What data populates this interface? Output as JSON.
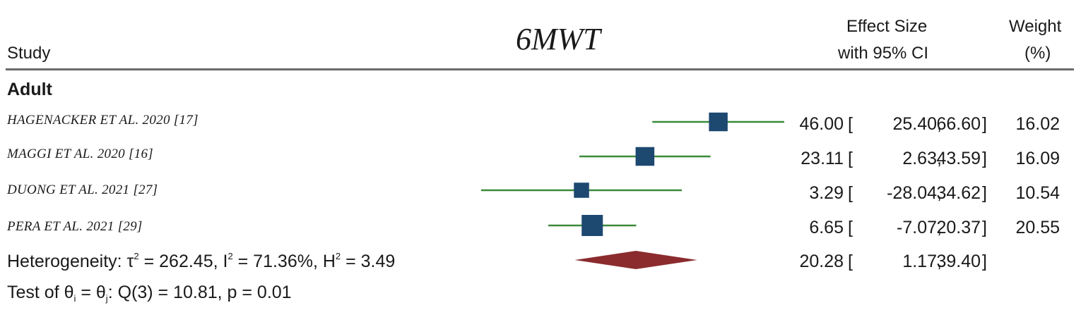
{
  "chart_data": {
    "type": "forest",
    "title": "6MWT",
    "columns": {
      "study": "Study",
      "effect_line1": "Effect Size",
      "effect_line2": "with 95% CI",
      "weight_line1": "Weight",
      "weight_line2": "(%)"
    },
    "subgroup": "Adult",
    "studies": [
      {
        "name": "HAGENACKER ET AL. 2020 [17]",
        "effect": 46.0,
        "lower": 25.4,
        "upper": 66.6,
        "weight": 16.02,
        "effect_text": "46.00",
        "lower_text": "25.40",
        "upper_text": "66.60",
        "weight_text": "16.02"
      },
      {
        "name": "MAGGI ET AL. 2020 [16]",
        "effect": 23.11,
        "lower": 2.63,
        "upper": 43.59,
        "weight": 16.09,
        "effect_text": "23.11",
        "lower_text": "2.63",
        "upper_text": "43.59",
        "weight_text": "16.09"
      },
      {
        "name": "DUONG ET AL. 2021 [27]",
        "effect": 3.29,
        "lower": -28.04,
        "upper": 34.62,
        "weight": 10.54,
        "effect_text": "3.29",
        "lower_text": "-28.04",
        "upper_text": "34.62",
        "weight_text": "10.54"
      },
      {
        "name": "PERA ET AL. 2021 [29]",
        "effect": 6.65,
        "lower": -7.07,
        "upper": 20.37,
        "weight": 20.55,
        "effect_text": "6.65",
        "lower_text": "-7.07",
        "upper_text": "20.37",
        "weight_text": "20.55"
      }
    ],
    "pooled": {
      "effect": 20.28,
      "lower": 1.17,
      "upper": 39.4,
      "effect_text": "20.28",
      "lower_text": "1.17",
      "upper_text": "39.40"
    },
    "heterogeneity": {
      "prefix": "Heterogeneity: τ",
      "tau2_text": " = 262.45, I",
      "i2_text": " = 71.36%, H",
      "h2_text": " = 3.49",
      "sup": "2"
    },
    "test": {
      "prefix": "Test of θ",
      "sub_i": "i",
      "mid": " = θ",
      "sub_j": "j",
      "rest": ": Q(3) = 10.81, p = 0.01"
    },
    "colors": {
      "ci_line": "#3a8a3a",
      "marker": "#1d4870",
      "pooled": "#8b2b2e"
    }
  }
}
